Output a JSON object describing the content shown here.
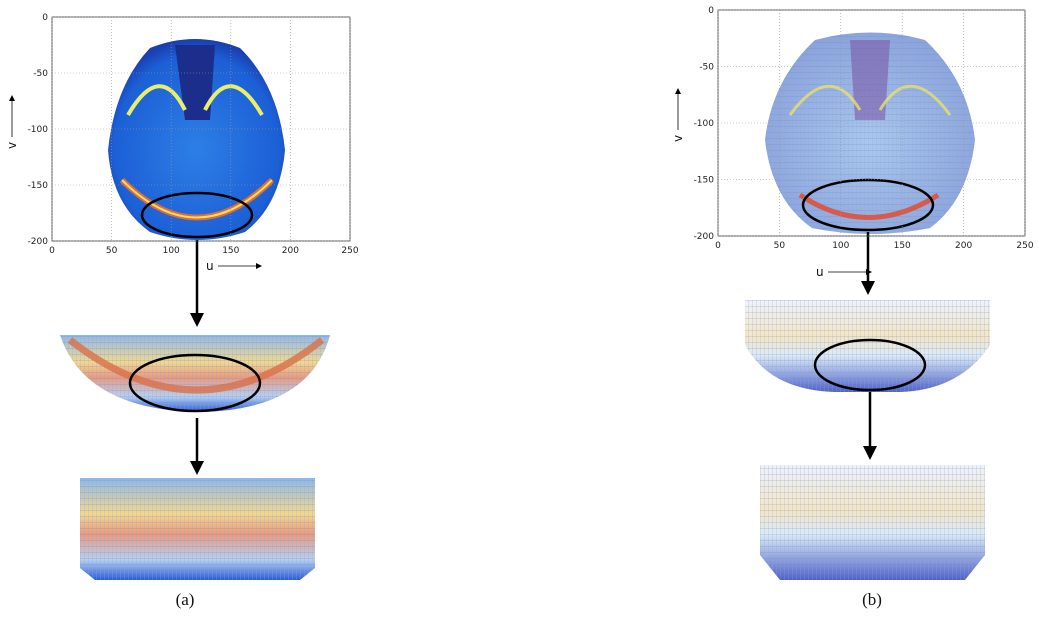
{
  "panels": [
    {
      "yticks": [
        0,
        -50,
        -100,
        -150,
        -200
      ],
      "xticks": [
        0,
        50,
        100,
        150,
        200,
        250
      ],
      "ylabel": "v",
      "xlabel": "u",
      "caption": "(a)"
    },
    {
      "yticks": [
        0,
        -50,
        -100,
        -150,
        -200
      ],
      "xticks": [
        0,
        50,
        100,
        150,
        200,
        250
      ],
      "ylabel": "v",
      "xlabel": "u",
      "caption": "(b)"
    }
  ]
}
